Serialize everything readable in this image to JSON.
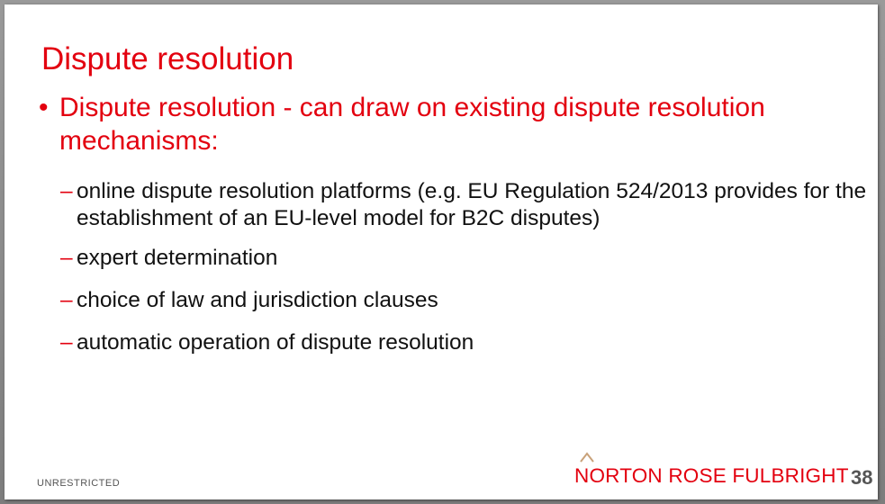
{
  "slide": {
    "title": "Dispute resolution",
    "main_bullet": {
      "marker": "•",
      "text": "Dispute resolution - can draw on existing dispute resolution mechanisms:"
    },
    "sub_bullets": [
      {
        "marker": "–",
        "text": "online dispute resolution platforms (e.g. EU Regulation 524/2013 provides for the establishment of an EU-level model for B2C disputes)"
      },
      {
        "marker": "–",
        "text": "expert determination"
      },
      {
        "marker": "–",
        "text": "choice of law and jurisdiction clauses"
      },
      {
        "marker": "–",
        "text": "automatic operation of dispute resolution"
      }
    ],
    "classification": "UNRESTRICTED",
    "logo_text": "NORTON ROSE FULBRIGHT",
    "page_number": "38"
  },
  "colors": {
    "accent": "#e3000f",
    "body_text": "#111111",
    "muted": "#555555"
  },
  "icons": {
    "logo_mark": "chevron-roof-icon"
  }
}
